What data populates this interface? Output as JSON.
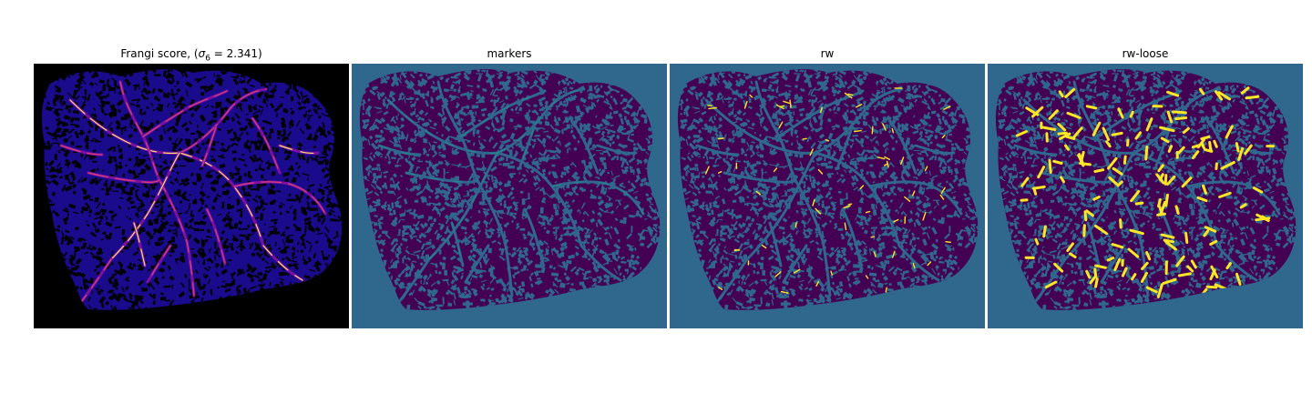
{
  "panels": [
    {
      "title_prefix": "Frangi score, (",
      "sigma_symbol": "σ",
      "sigma_sub": "6",
      "title_suffix": " = 2.341)"
    },
    {
      "title": "markers"
    },
    {
      "title": "rw"
    },
    {
      "title": "rw-loose"
    }
  ],
  "colors": {
    "frangi_background": "#000000",
    "frangi_tissue": "#1a0a8c",
    "frangi_vessel_low": "#7b10a0",
    "frangi_vessel_mid": "#d8407a",
    "frangi_vessel_high": "#f7e06a",
    "label_background": "#30678c",
    "label_dark": "#440154",
    "label_mid": "#21918c",
    "label_bright": "#fde725"
  }
}
